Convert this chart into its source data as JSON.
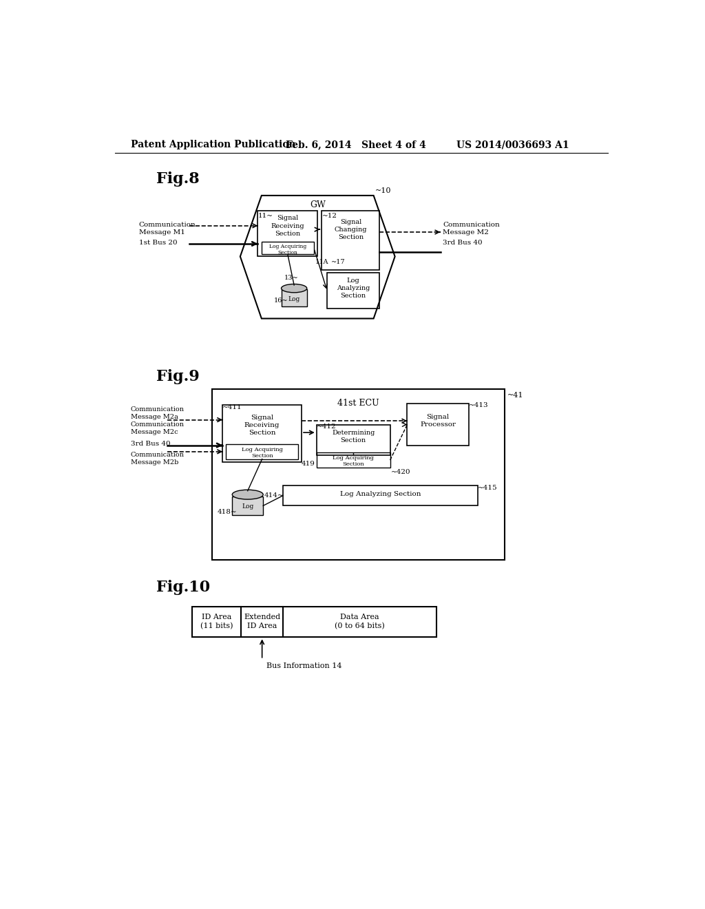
{
  "bg_color": "#ffffff",
  "header_text": "Patent Application Publication",
  "header_date": "Feb. 6, 2014   Sheet 4 of 4",
  "header_patent": "US 2014/0036693 A1",
  "fig8_title": "Fig.8",
  "fig9_title": "Fig.9",
  "fig10_title": "Fig.10"
}
